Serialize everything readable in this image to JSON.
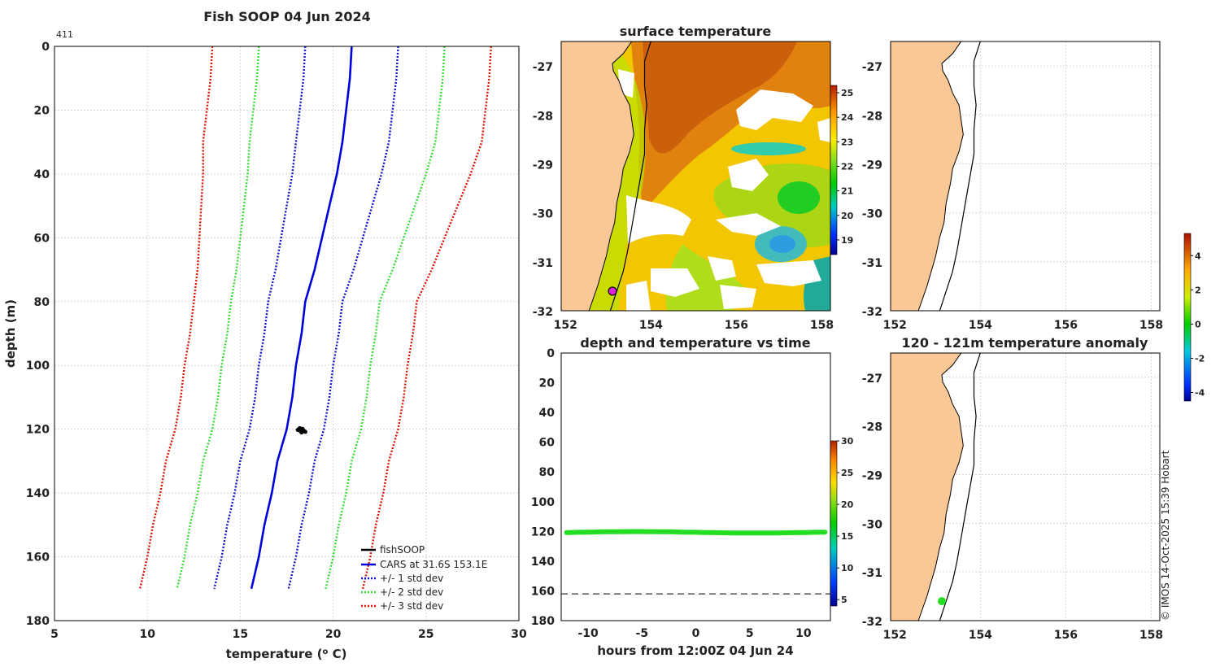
{
  "colors": {
    "land": "#f9c896",
    "fishsoop": "#000000",
    "cars": "#0000dd",
    "std1": "#1111cc",
    "std2": "#33dd33",
    "std3": "#dd1100",
    "obs_dot": "#22dd22",
    "marker": "#dd22dd"
  },
  "chart_data": [
    {
      "id": "profile",
      "type": "line",
      "title": "Fish SOOP 04 Jun 2024",
      "corner_label": "411",
      "xlabel": "temperature (",
      "xlabel_sup": "o",
      "xlabel_tail": " C)",
      "ylabel": "depth (m)",
      "xlim": [
        5,
        30
      ],
      "ylim": [
        180,
        0
      ],
      "xticks": [
        5,
        10,
        15,
        20,
        25,
        30
      ],
      "yticks": [
        0,
        20,
        40,
        60,
        80,
        100,
        120,
        140,
        160,
        180
      ],
      "legend": [
        "fishSOOP",
        "CARS at 31.6S 153.1E",
        "+/- 1 std dev",
        "+/- 2 std dev",
        "+/- 3 std dev"
      ],
      "depth": [
        0,
        10,
        20,
        30,
        40,
        50,
        60,
        70,
        80,
        90,
        100,
        110,
        120,
        130,
        140,
        150,
        160,
        170
      ],
      "cars_mean": [
        21.0,
        20.9,
        20.7,
        20.5,
        20.2,
        19.8,
        19.4,
        19.0,
        18.5,
        18.3,
        18.0,
        17.8,
        17.5,
        17.0,
        16.7,
        16.3,
        16.0,
        15.6
      ],
      "std1": [
        2.5,
        2.5,
        2.5,
        2.5,
        2.4,
        2.3,
        2.2,
        2.1,
        2.0,
        2.0,
        2.0,
        2.0,
        2.0,
        2.0,
        2.0,
        2.0,
        2.0,
        2.0
      ],
      "fishsoop_points": [
        [
          18.1,
          120.2
        ],
        [
          18.2,
          119.7
        ],
        [
          18.3,
          121.0
        ],
        [
          18.4,
          120.4
        ],
        [
          18.5,
          120.8
        ],
        [
          18.25,
          120.6
        ],
        [
          18.35,
          119.9
        ]
      ]
    },
    {
      "id": "depth_time",
      "type": "scatter",
      "title": "depth and temperature vs time",
      "xlabel": "hours from 12:00Z 04 Jun 24",
      "xlim": [
        -12.5,
        12.5
      ],
      "ylim": [
        180,
        0
      ],
      "xticks": [
        -10,
        -5,
        0,
        5,
        10
      ],
      "yticks": [
        0,
        20,
        40,
        60,
        80,
        100,
        120,
        140,
        160,
        180
      ],
      "obs_depth": 120.6,
      "bottom_depth": 162,
      "colorbar_ticks": [
        5,
        10,
        15,
        20,
        25,
        30
      ],
      "colorbar_range": [
        4,
        30
      ]
    }
  ],
  "maps": {
    "sst": {
      "title": "surface temperature",
      "lon_range": [
        151.9,
        158.2
      ],
      "lat_range": [
        -32,
        -26.5
      ],
      "xticks": [
        152,
        154,
        156,
        158
      ],
      "yticks": [
        -27,
        -28,
        -29,
        -30,
        -31,
        -32
      ],
      "colorbar_ticks": [
        19,
        20,
        21,
        22,
        23,
        24,
        25
      ],
      "colorbar_range": [
        18.4,
        25.3
      ]
    },
    "top_right": {
      "xticks": [
        152,
        154,
        156,
        158
      ],
      "yticks": [
        -27,
        -28,
        -29,
        -30,
        -31,
        -32
      ]
    },
    "anomaly": {
      "title": "120 - 121m temperature anomaly",
      "xticks": [
        152,
        154,
        156,
        158
      ],
      "yticks": [
        -27,
        -28,
        -29,
        -30,
        -31,
        -32
      ],
      "colorbar_ticks": [
        -4,
        -2,
        0,
        2,
        4
      ],
      "colorbar_range": [
        -4.5,
        5.3
      ]
    },
    "station": {
      "lon": 153.1,
      "lat": -31.6
    }
  },
  "credit": "© IMOS 14-Oct-2025 15:39 Hobart"
}
